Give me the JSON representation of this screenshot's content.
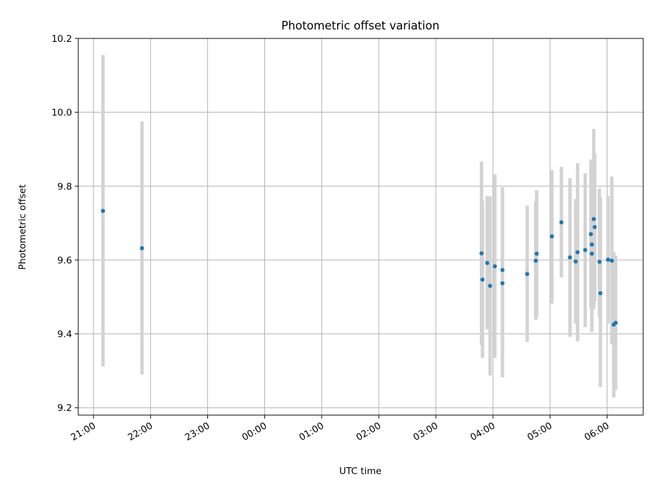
{
  "chart_data": {
    "type": "scatter",
    "title": "Photometric offset variation",
    "xlabel": "UTC time",
    "ylabel": "Photometric offset",
    "x_tick_labels": [
      "21:00",
      "22:00",
      "23:00",
      "00:00",
      "01:00",
      "02:00",
      "03:00",
      "04:00",
      "05:00",
      "06:00"
    ],
    "y_ticks": [
      9.2,
      9.4,
      9.6,
      9.8,
      10.0,
      10.2
    ],
    "y_tick_labels": [
      "9.2",
      "9.4",
      "9.6",
      "9.8",
      "10.0",
      "10.2"
    ],
    "ylim": [
      9.18,
      10.2
    ],
    "xlim": [
      "20:44",
      "06:38"
    ],
    "grid": true,
    "colors": {
      "point": "#1f77b4",
      "errorbar": "#d3d3d3",
      "grid": "#b0b0b0"
    },
    "points": [
      {
        "x": "21:10",
        "y": 9.733,
        "ylow": 9.312,
        "yhigh": 10.155
      },
      {
        "x": "21:51",
        "y": 9.632,
        "ylow": 9.29,
        "yhigh": 9.975
      },
      {
        "x": "03:48",
        "y": 9.618,
        "ylow": 9.37,
        "yhigh": 9.866
      },
      {
        "x": "03:49",
        "y": 9.547,
        "ylow": 9.335,
        "yhigh": 9.76
      },
      {
        "x": "03:54",
        "y": 9.592,
        "ylow": 9.412,
        "yhigh": 9.773
      },
      {
        "x": "03:57",
        "y": 9.53,
        "ylow": 9.287,
        "yhigh": 9.772
      },
      {
        "x": "04:02",
        "y": 9.583,
        "ylow": 9.335,
        "yhigh": 9.832
      },
      {
        "x": "04:10",
        "y": 9.573,
        "ylow": 9.35,
        "yhigh": 9.797
      },
      {
        "x": "04:10",
        "y": 9.537,
        "ylow": 9.282,
        "yhigh": 9.792
      },
      {
        "x": "04:36",
        "y": 9.562,
        "ylow": 9.378,
        "yhigh": 9.747
      },
      {
        "x": "04:45",
        "y": 9.598,
        "ylow": 9.438,
        "yhigh": 9.76
      },
      {
        "x": "04:46",
        "y": 9.617,
        "ylow": 9.445,
        "yhigh": 9.789
      },
      {
        "x": "05:02",
        "y": 9.664,
        "ylow": 9.482,
        "yhigh": 9.843
      },
      {
        "x": "05:12",
        "y": 9.702,
        "ylow": 9.553,
        "yhigh": 9.852
      },
      {
        "x": "05:21",
        "y": 9.607,
        "ylow": 9.392,
        "yhigh": 9.822
      },
      {
        "x": "05:27",
        "y": 9.596,
        "ylow": 9.428,
        "yhigh": 9.765
      },
      {
        "x": "05:29",
        "y": 9.621,
        "ylow": 9.38,
        "yhigh": 9.862
      },
      {
        "x": "05:37",
        "y": 9.627,
        "ylow": 9.418,
        "yhigh": 9.835
      },
      {
        "x": "05:43",
        "y": 9.67,
        "ylow": 9.468,
        "yhigh": 9.872
      },
      {
        "x": "05:44",
        "y": 9.642,
        "ylow": 9.467,
        "yhigh": 9.818
      },
      {
        "x": "05:44",
        "y": 9.617,
        "ylow": 9.405,
        "yhigh": 9.83
      },
      {
        "x": "05:46",
        "y": 9.711,
        "ylow": 9.467,
        "yhigh": 9.955
      },
      {
        "x": "05:47",
        "y": 9.689,
        "ylow": 9.488,
        "yhigh": 9.889
      },
      {
        "x": "05:52",
        "y": 9.595,
        "ylow": 9.445,
        "yhigh": 9.793
      },
      {
        "x": "05:53",
        "y": 9.51,
        "ylow": 9.256,
        "yhigh": 9.768
      },
      {
        "x": "06:01",
        "y": 9.601,
        "ylow": 9.428,
        "yhigh": 9.773
      },
      {
        "x": "06:05",
        "y": 9.598,
        "ylow": 9.372,
        "yhigh": 9.826
      },
      {
        "x": "06:07",
        "y": 9.425,
        "ylow": 9.228,
        "yhigh": 9.622
      },
      {
        "x": "06:09",
        "y": 9.43,
        "ylow": 9.248,
        "yhigh": 9.612
      }
    ]
  }
}
